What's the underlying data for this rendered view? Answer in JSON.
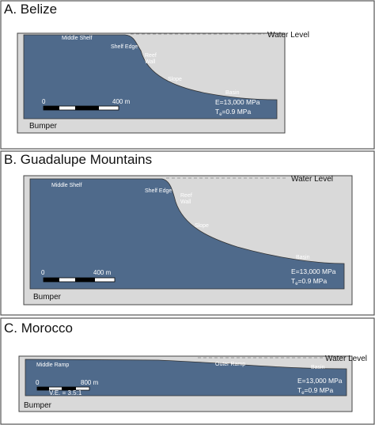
{
  "panels": [
    {
      "title": "A.  Belize",
      "water_level": "Water Level",
      "features": [
        "Middle Shelf",
        "Shelf Edge",
        "Reef",
        "Wall",
        "Slope",
        "Basin"
      ],
      "scale_bar": {
        "start": "0",
        "end": "400 m"
      },
      "material": {
        "e": "E=13,000 MPa",
        "t_symbol": "T",
        "t_subscript": "e",
        "t_rest": "=0.9 MPa"
      },
      "bumper": "Bumper"
    },
    {
      "title": "B.  Guadalupe Mountains",
      "water_level": "Water Level",
      "features": [
        "Middle Shelf",
        "Shelf Edge",
        "Reef",
        "Wall",
        "Slope",
        "Basin"
      ],
      "scale_bar": {
        "start": "0",
        "end": "400 m"
      },
      "material": {
        "e": "E=13,000 MPa",
        "t_symbol": "T",
        "t_subscript": "e",
        "t_rest": "=0.9 MPa"
      },
      "bumper": "Bumper"
    },
    {
      "title": "C.  Morocco",
      "water_level": "Water Level",
      "features": [
        "Middle Ramp",
        "Outer Ramp",
        "Basin"
      ],
      "scale_bar": {
        "start": "0",
        "end": "800 m",
        "exaggeration": "V.E. = 3.5:1"
      },
      "material": {
        "e": "E=13,000 MPa",
        "t_symbol": "T",
        "t_subscript": "e",
        "t_rest": "=0.9 MPa"
      },
      "bumper": "Bumper"
    }
  ]
}
